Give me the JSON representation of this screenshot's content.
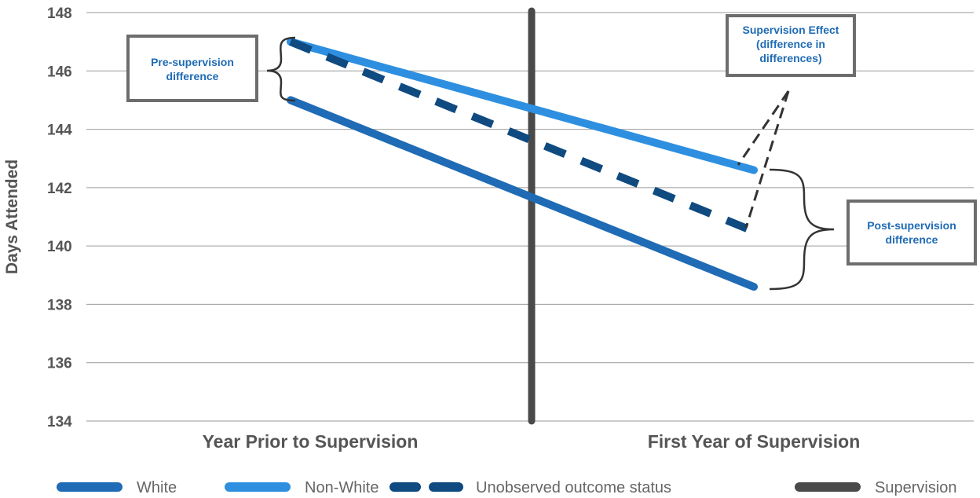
{
  "chart_data": {
    "type": "line",
    "categories": [
      "Year Prior to Supervision",
      "First Year of Supervision"
    ],
    "ylabel": "Days Attended",
    "ylim": [
      134,
      148
    ],
    "yticks": [
      "148",
      "146",
      "144",
      "142",
      "140",
      "138",
      "136",
      "134"
    ],
    "grid": true,
    "series": [
      {
        "name": "White",
        "values": [
          145.0,
          138.6
        ],
        "color": "#1F6BB5",
        "style": "solid"
      },
      {
        "name": "Non-White",
        "values": [
          147.0,
          142.6
        ],
        "color": "#2E8FE0",
        "style": "solid"
      },
      {
        "name": "Unobserved outcome status",
        "values": [
          147.0,
          140.5
        ],
        "color": "#0F4A80",
        "style": "dashed"
      }
    ],
    "divider": {
      "name": "Supervision",
      "color": "#4A4A4A",
      "style": "solid"
    },
    "annotations": {
      "pre": "Pre-supervision difference",
      "effect": "Supervision Effect (difference in differences)",
      "post": "Post-supervision difference"
    },
    "legend_position": "bottom"
  }
}
